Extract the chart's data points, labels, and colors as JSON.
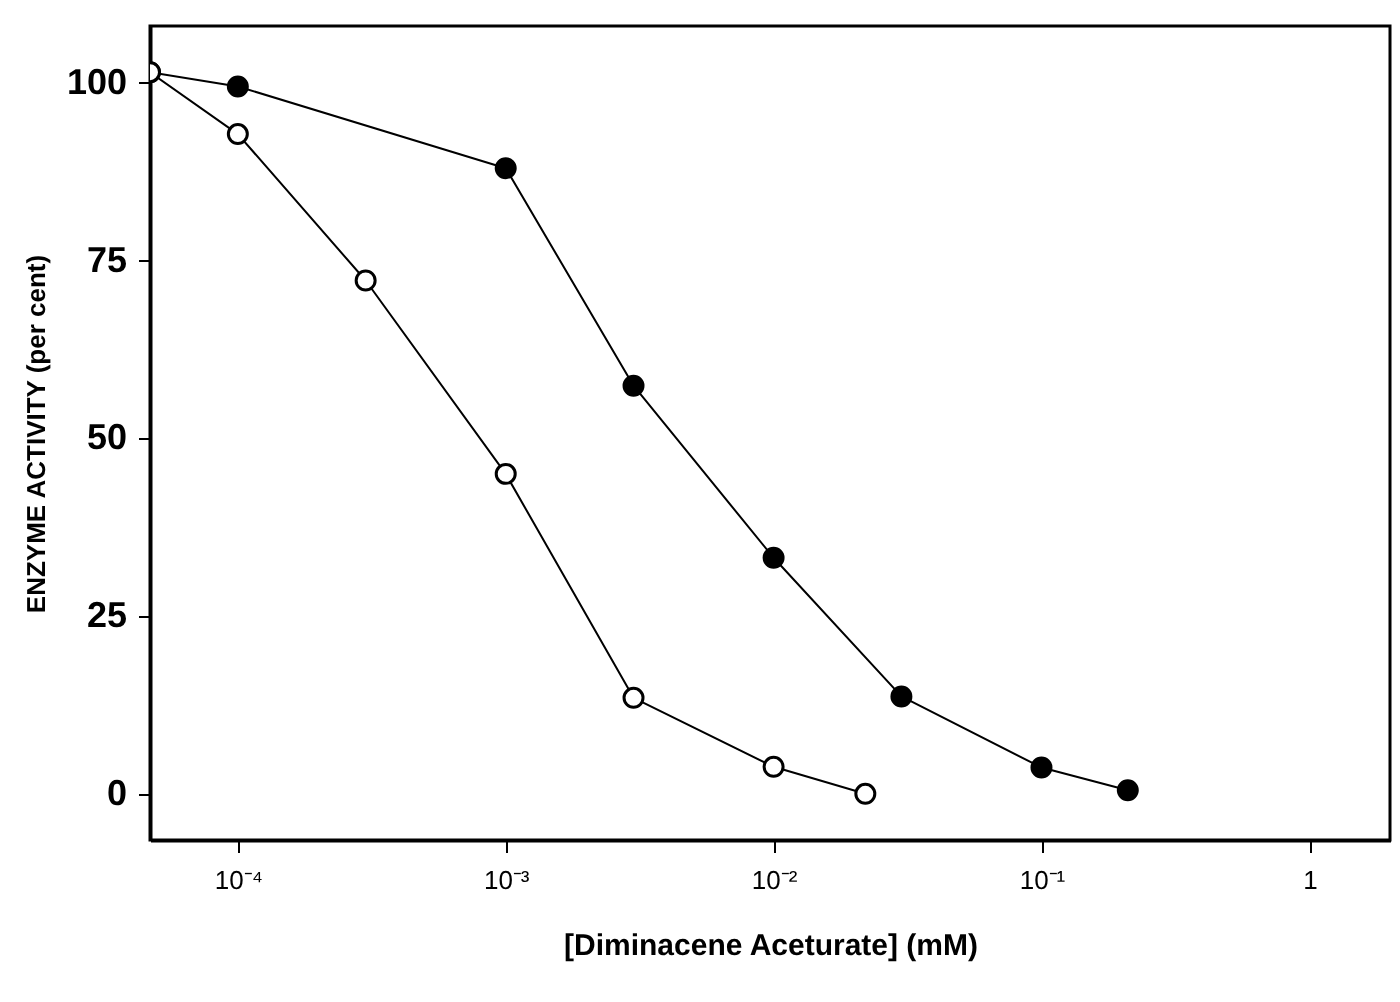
{
  "chart_data": {
    "type": "line",
    "xlabel": "[Diminacene Aceturate] (mM)",
    "ylabel": "ENZYME ACTIVITY (per cent)",
    "log": "x",
    "xlim": [
      4.7e-05,
      2
    ],
    "ylim": [
      -6.5,
      108
    ],
    "xticks": [
      {
        "value": 0.0001,
        "label": "10⁻⁴"
      },
      {
        "value": 0.001,
        "label": "10⁻³"
      },
      {
        "value": 0.01,
        "label": "10⁻²"
      },
      {
        "value": 0.1,
        "label": "10⁻¹"
      },
      1
    ],
    "yticks": [
      0,
      25,
      50,
      75,
      100
    ],
    "grid": false,
    "marker": "circle",
    "line_style": "solid",
    "series": [
      {
        "color": "#000000",
        "x": [
          4.7e-05,
          0.0001,
          0.001,
          0.003,
          0.01,
          0.03,
          0.1,
          0.21
        ],
        "values": [
          101.5,
          99.5,
          88,
          57.4,
          33.2,
          13.7,
          3.7,
          0.5
        ]
      },
      {
        "color": "#ffffff",
        "x": [
          4.7e-05,
          0.0001,
          0.0003,
          0.001,
          0.003,
          0.01,
          0.022
        ],
        "values": [
          101.5,
          92.8,
          72.2,
          45,
          13.5,
          3.8,
          0
        ]
      }
    ]
  }
}
